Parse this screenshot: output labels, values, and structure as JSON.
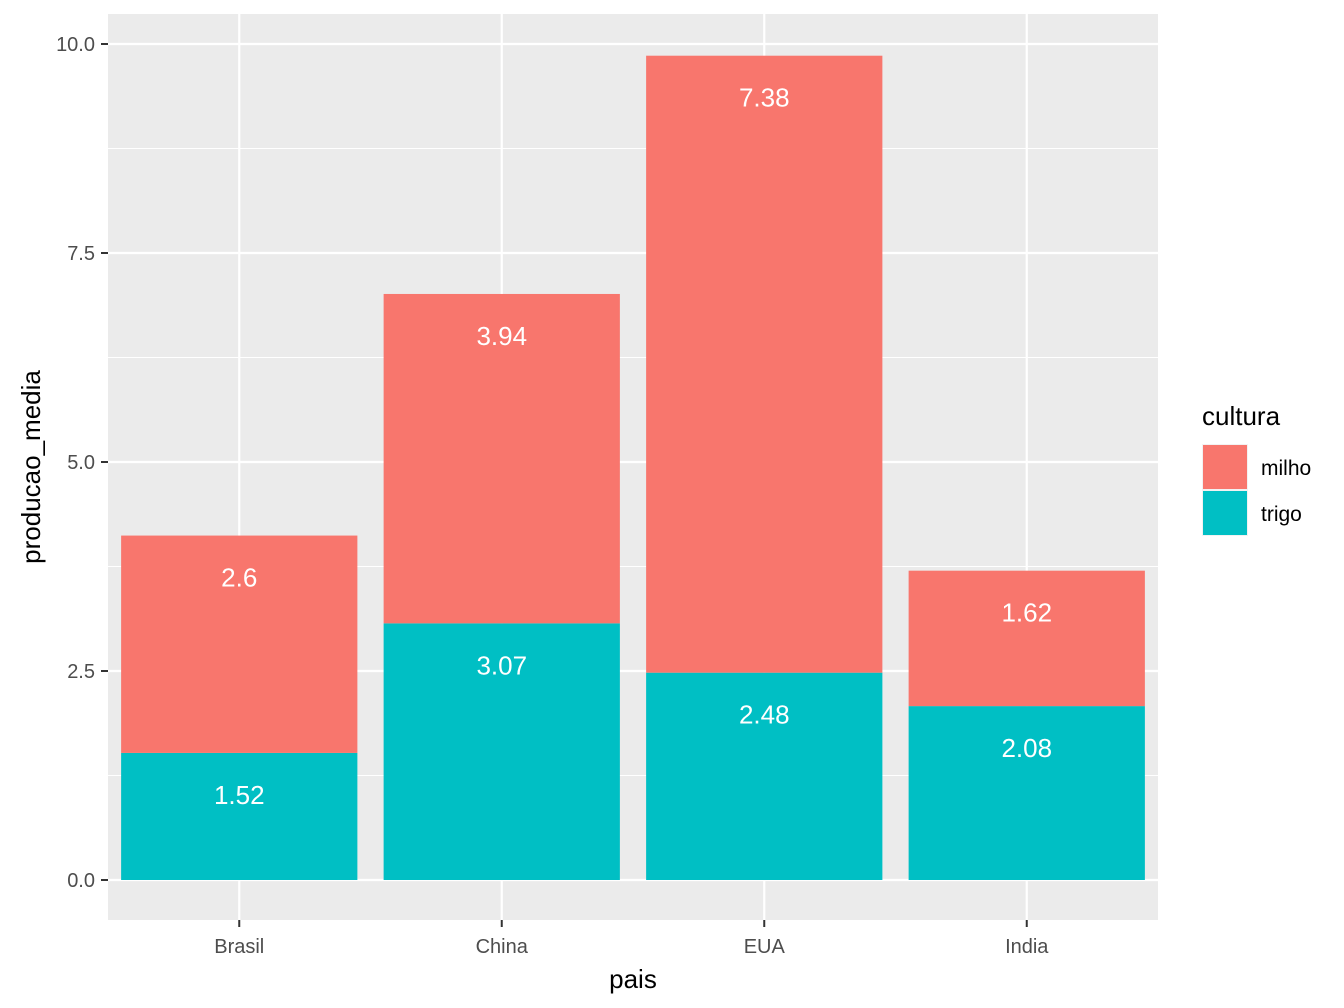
{
  "chart_data": {
    "type": "bar",
    "stacked": true,
    "categories": [
      "Brasil",
      "China",
      "EUA",
      "India"
    ],
    "series": [
      {
        "name": "trigo",
        "values": [
          1.52,
          3.07,
          2.48,
          2.08
        ],
        "labels": [
          "1.52",
          "3.07",
          "2.48",
          "2.08"
        ],
        "color": "#00BFC4"
      },
      {
        "name": "milho",
        "values": [
          2.6,
          3.94,
          7.38,
          1.62
        ],
        "labels": [
          "2.6",
          "3.94",
          "7.38",
          "1.62"
        ],
        "color": "#F8766D"
      }
    ],
    "xlabel": "pais",
    "ylabel": "producao_media",
    "ylim": [
      0,
      10.4
    ],
    "yticks": [
      0,
      2.5,
      5,
      7.5,
      10
    ],
    "ytick_labels": [
      "0.0",
      "2.5",
      "5.0",
      "7.5",
      "10.0"
    ],
    "grid": true,
    "legend": {
      "title": "cultura",
      "position": "right",
      "entries": [
        {
          "label": "milho",
          "color": "#F8766D"
        },
        {
          "label": "trigo",
          "color": "#00BFC4"
        }
      ]
    },
    "panel_color": "#EBEBEB",
    "grid_color": "#FFFFFF"
  }
}
